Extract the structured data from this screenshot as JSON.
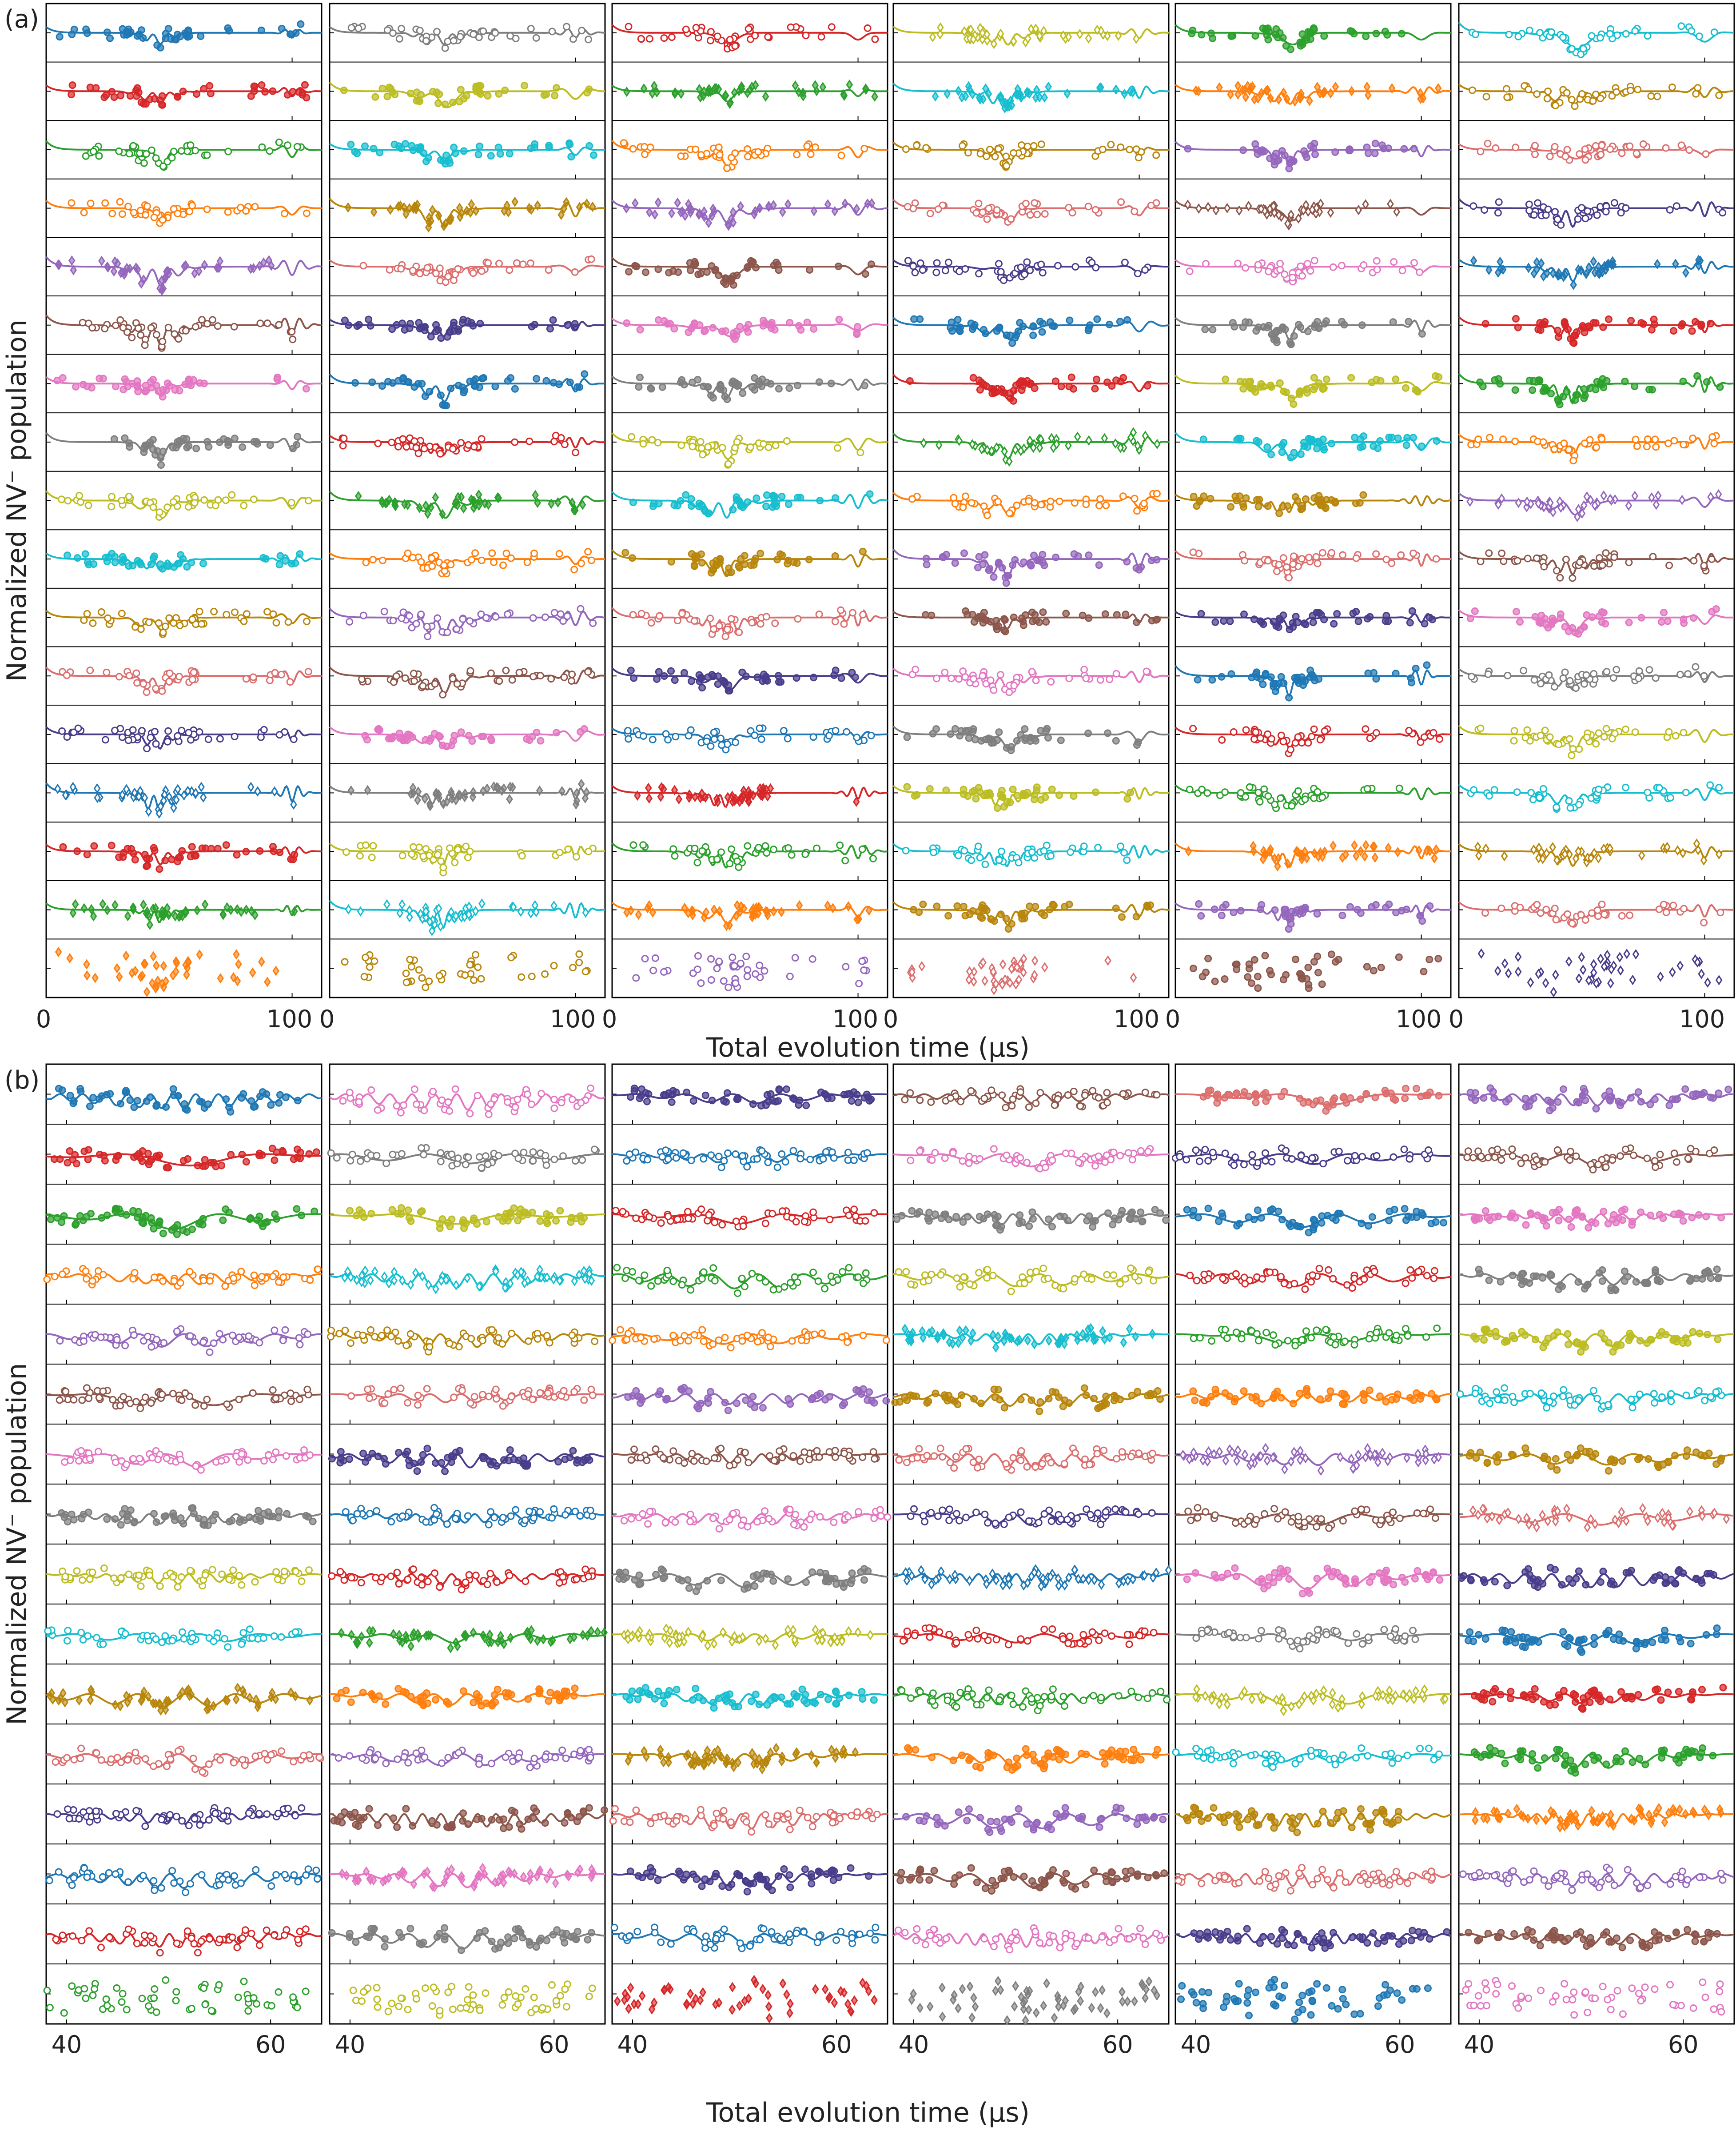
{
  "colors": [
    "#1f77b4",
    "#d62728",
    "#2ca02c",
    "#ff7f0e",
    "#9467bd",
    "#8c564b",
    "#e377c2",
    "#7f7f7f",
    "#bcbd22",
    "#17becf",
    "#b8860b",
    "#dc6e6e",
    "#483d8b"
  ],
  "chart_data": [
    {
      "panel_label": "(a)",
      "type": "scatter",
      "layout": "grid",
      "grid": {
        "columns": 6,
        "rows_per_column": 17
      },
      "xlabel": "Total evolution time (µs)",
      "ylabel": "Normalized NV⁻ population",
      "xlim": [
        0,
        112
      ],
      "xticks": [
        0,
        100
      ],
      "tick_labels": [
        "0",
        "100"
      ],
      "dip_center": 45,
      "echo_position": 100,
      "samples": 44
    },
    {
      "panel_label": "(b)",
      "type": "scatter",
      "layout": "grid",
      "grid": {
        "columns": 6,
        "rows_per_column": 16
      },
      "xlabel": "Total evolution time (µs)",
      "ylabel": "Normalized NV⁻ population",
      "xlim": [
        38,
        65
      ],
      "xticks": [
        40,
        60
      ],
      "tick_labels": [
        "40",
        "60"
      ],
      "dip_center": 51,
      "samples": 60
    }
  ]
}
